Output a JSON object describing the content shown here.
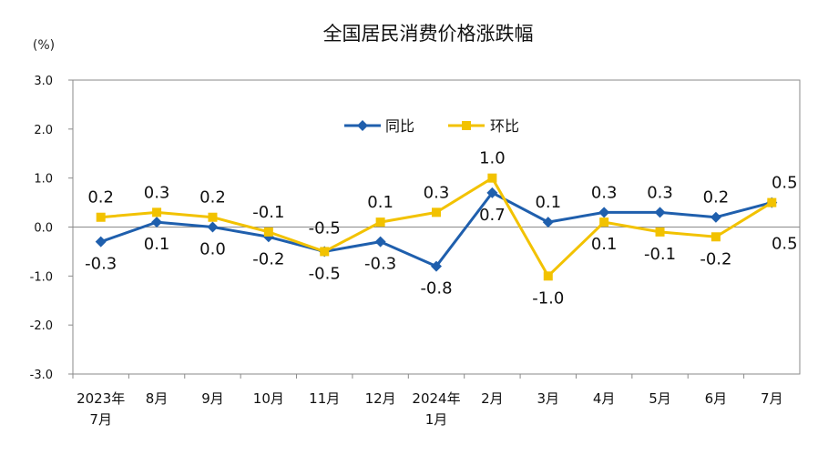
{
  "chart_data": {
    "type": "line",
    "title": "全国居民消费价格涨跌幅",
    "unit": "(%)",
    "ylim": [
      -3.0,
      3.0
    ],
    "yticks": [
      "3.0",
      "2.0",
      "1.0",
      "0.0",
      "-1.0",
      "-2.0",
      "-3.0"
    ],
    "categories": [
      [
        "2023年",
        "7月"
      ],
      [
        "8月"
      ],
      [
        "9月"
      ],
      [
        "10月"
      ],
      [
        "11月"
      ],
      [
        "12月"
      ],
      [
        "2024年",
        "1月"
      ],
      [
        "2月"
      ],
      [
        "3月"
      ],
      [
        "4月"
      ],
      [
        "5月"
      ],
      [
        "6月"
      ],
      [
        "7月"
      ]
    ],
    "series": [
      {
        "name": "同比",
        "color": "#1f5fad",
        "marker": "diamond",
        "values": [
          -0.3,
          0.1,
          0.0,
          -0.2,
          -0.5,
          -0.3,
          -0.8,
          0.7,
          0.1,
          0.3,
          0.3,
          0.2,
          0.5
        ],
        "labels": [
          "-0.3",
          "0.1",
          "0.0",
          "-0.2",
          "-0.5",
          "-0.3",
          "-0.8",
          "0.7",
          "0.1",
          "0.3",
          "0.3",
          "0.2",
          "0.5"
        ]
      },
      {
        "name": "环比",
        "color": "#f2c200",
        "marker": "square",
        "values": [
          0.2,
          0.3,
          0.2,
          -0.1,
          -0.5,
          0.1,
          0.3,
          1.0,
          -1.0,
          0.1,
          -0.1,
          -0.2,
          0.5
        ],
        "labels": [
          "0.2",
          "0.3",
          "0.2",
          "-0.1",
          "-0.5",
          "0.1",
          "0.3",
          "1.0",
          "-1.0",
          "0.1",
          "-0.1",
          "-0.2",
          "0.5"
        ]
      }
    ],
    "legend": "top-center",
    "grid": false
  }
}
